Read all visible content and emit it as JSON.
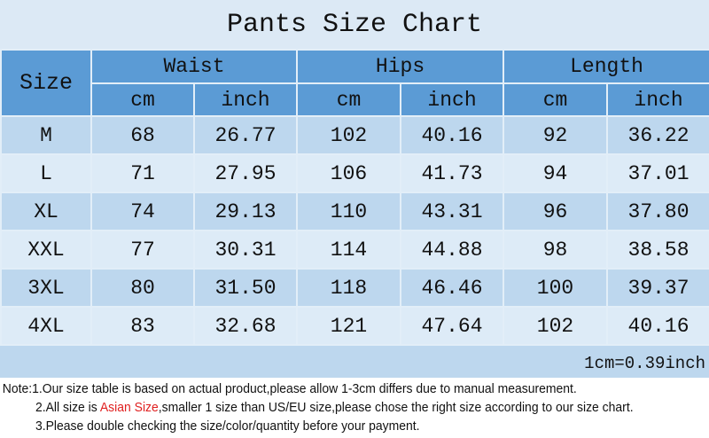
{
  "title": "Pants Size Chart",
  "header": {
    "size": "Size",
    "groups": [
      "Waist",
      "Hips",
      "Length"
    ],
    "units": [
      "cm",
      "inch",
      "cm",
      "inch",
      "cm",
      "inch"
    ]
  },
  "rows": [
    [
      "M",
      "68",
      "26.77",
      "102",
      "40.16",
      "92",
      "36.22"
    ],
    [
      "L",
      "71",
      "27.95",
      "106",
      "41.73",
      "94",
      "37.01"
    ],
    [
      "XL",
      "74",
      "29.13",
      "110",
      "43.31",
      "96",
      "37.80"
    ],
    [
      "XXL",
      "77",
      "30.31",
      "114",
      "44.88",
      "98",
      "38.58"
    ],
    [
      "3XL",
      "80",
      "31.50",
      "118",
      "46.46",
      "100",
      "39.37"
    ],
    [
      "4XL",
      "83",
      "32.68",
      "121",
      "47.64",
      "102",
      "40.16"
    ]
  ],
  "conversion": "1cm=0.39inch",
  "notes": {
    "n1": "Note:1.Our size table is based on actual product,please allow 1-3cm differs due to manual measurement.",
    "n2_pre": "2.All size is ",
    "n2_red": "Asian Size",
    "n2_post": ",smaller 1 size than US/EU size,please chose the right size according to our size chart.",
    "n3": "3.Please double checking the size/color/quantity before your payment."
  },
  "colors": {
    "header": "#5b9bd5",
    "row_dark": "#bdd7ee",
    "row_light": "#ddebf7",
    "highlight": "#e02020"
  }
}
